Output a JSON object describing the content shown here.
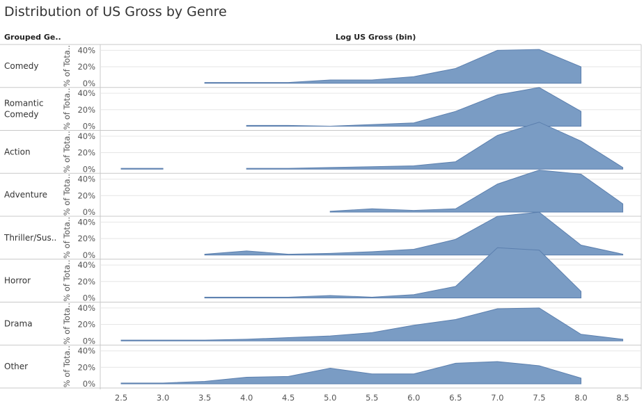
{
  "title": "Distribution of US Gross by Genre",
  "header": {
    "row_header": "Grouped Ge..",
    "column_header": "Log US Gross (bin)"
  },
  "axis_title_y": "% of Tota..",
  "colors": {
    "area": "#7a9cc4",
    "area_stroke": "#5b7fae",
    "grid": "#e6e6e6",
    "border": "#c8c8c8"
  },
  "chart_data": {
    "type": "area",
    "title": "Distribution of US Gross by Genre",
    "xlabel": "Log US Gross (bin)",
    "ylabel": "% of Tota..",
    "x": [
      2.5,
      3.0,
      3.5,
      4.0,
      4.5,
      5.0,
      5.5,
      6.0,
      6.5,
      7.0,
      7.5,
      8.0,
      8.5
    ],
    "x_tick_labels": [
      "2.5",
      "3.0",
      "3.5",
      "4.0",
      "4.5",
      "5.0",
      "5.5",
      "6.0",
      "6.5",
      "7.0",
      "7.5",
      "8.0",
      "8.5"
    ],
    "y_tick_labels": [
      "40%",
      "20%",
      "0%"
    ],
    "ylim": [
      0,
      42
    ],
    "grid": true,
    "series": [
      {
        "name": "Comedy",
        "points": [
          [
            3.5,
            1
          ],
          [
            4.0,
            1
          ],
          [
            4.5,
            1
          ],
          [
            5.0,
            4
          ],
          [
            5.5,
            4
          ],
          [
            6.0,
            8
          ],
          [
            6.5,
            18
          ],
          [
            7.0,
            40
          ],
          [
            7.5,
            41
          ],
          [
            8.0,
            20
          ]
        ]
      },
      {
        "name": "Romantic Comedy",
        "points": [
          [
            4.0,
            1
          ],
          [
            4.5,
            1
          ],
          [
            5.0,
            0
          ],
          [
            5.5,
            2
          ],
          [
            6.0,
            4
          ],
          [
            6.5,
            18
          ],
          [
            7.0,
            38
          ],
          [
            7.5,
            47
          ],
          [
            8.0,
            18
          ]
        ]
      },
      {
        "name": "Action",
        "points": [
          [
            2.5,
            1
          ],
          [
            3.0,
            1
          ],
          [
            null,
            null
          ],
          [
            4.0,
            1
          ],
          [
            4.5,
            1
          ],
          [
            5.0,
            2
          ],
          [
            5.5,
            3
          ],
          [
            6.0,
            4
          ],
          [
            6.5,
            9
          ],
          [
            7.0,
            41
          ],
          [
            7.5,
            57
          ],
          [
            8.0,
            34
          ],
          [
            8.5,
            2
          ]
        ]
      },
      {
        "name": "Adventure",
        "points": [
          [
            5.0,
            1
          ],
          [
            5.5,
            4
          ],
          [
            6.0,
            2
          ],
          [
            6.5,
            4
          ],
          [
            7.0,
            34
          ],
          [
            7.5,
            51
          ],
          [
            8.0,
            46
          ],
          [
            8.5,
            10
          ]
        ]
      },
      {
        "name": "Thriller/Sus..",
        "points": [
          [
            3.5,
            1
          ],
          [
            4.0,
            5
          ],
          [
            4.5,
            1
          ],
          [
            5.0,
            2
          ],
          [
            5.5,
            4
          ],
          [
            6.0,
            7
          ],
          [
            6.5,
            19
          ],
          [
            7.0,
            47
          ],
          [
            7.5,
            52
          ],
          [
            8.0,
            12
          ],
          [
            8.5,
            1
          ]
        ]
      },
      {
        "name": "Horror",
        "points": [
          [
            3.5,
            1
          ],
          [
            4.0,
            1
          ],
          [
            4.5,
            1
          ],
          [
            5.0,
            3
          ],
          [
            5.5,
            1
          ],
          [
            6.0,
            4
          ],
          [
            6.5,
            14
          ],
          [
            7.0,
            61
          ],
          [
            7.5,
            58
          ],
          [
            8.0,
            8
          ]
        ]
      },
      {
        "name": "Drama",
        "points": [
          [
            2.5,
            1
          ],
          [
            3.0,
            1
          ],
          [
            3.5,
            1
          ],
          [
            4.0,
            2
          ],
          [
            4.5,
            4
          ],
          [
            5.0,
            6
          ],
          [
            5.5,
            10
          ],
          [
            6.0,
            19
          ],
          [
            6.5,
            26
          ],
          [
            7.0,
            39
          ],
          [
            7.5,
            40
          ],
          [
            8.0,
            8
          ],
          [
            8.5,
            2
          ]
        ]
      },
      {
        "name": "Other",
        "points": [
          [
            2.5,
            1
          ],
          [
            3.0,
            1
          ],
          [
            3.5,
            3
          ],
          [
            4.0,
            8
          ],
          [
            4.5,
            9
          ],
          [
            5.0,
            19
          ],
          [
            5.5,
            12
          ],
          [
            6.0,
            12
          ],
          [
            6.5,
            25
          ],
          [
            7.0,
            27
          ],
          [
            7.5,
            22
          ],
          [
            8.0,
            7
          ]
        ]
      }
    ]
  },
  "row_labels": [
    [
      "Comedy"
    ],
    [
      "Romantic",
      "Comedy"
    ],
    [
      "Action"
    ],
    [
      "Adventure"
    ],
    [
      "Thriller/Sus.."
    ],
    [
      "Horror"
    ],
    [
      "Drama"
    ],
    [
      "Other"
    ]
  ]
}
